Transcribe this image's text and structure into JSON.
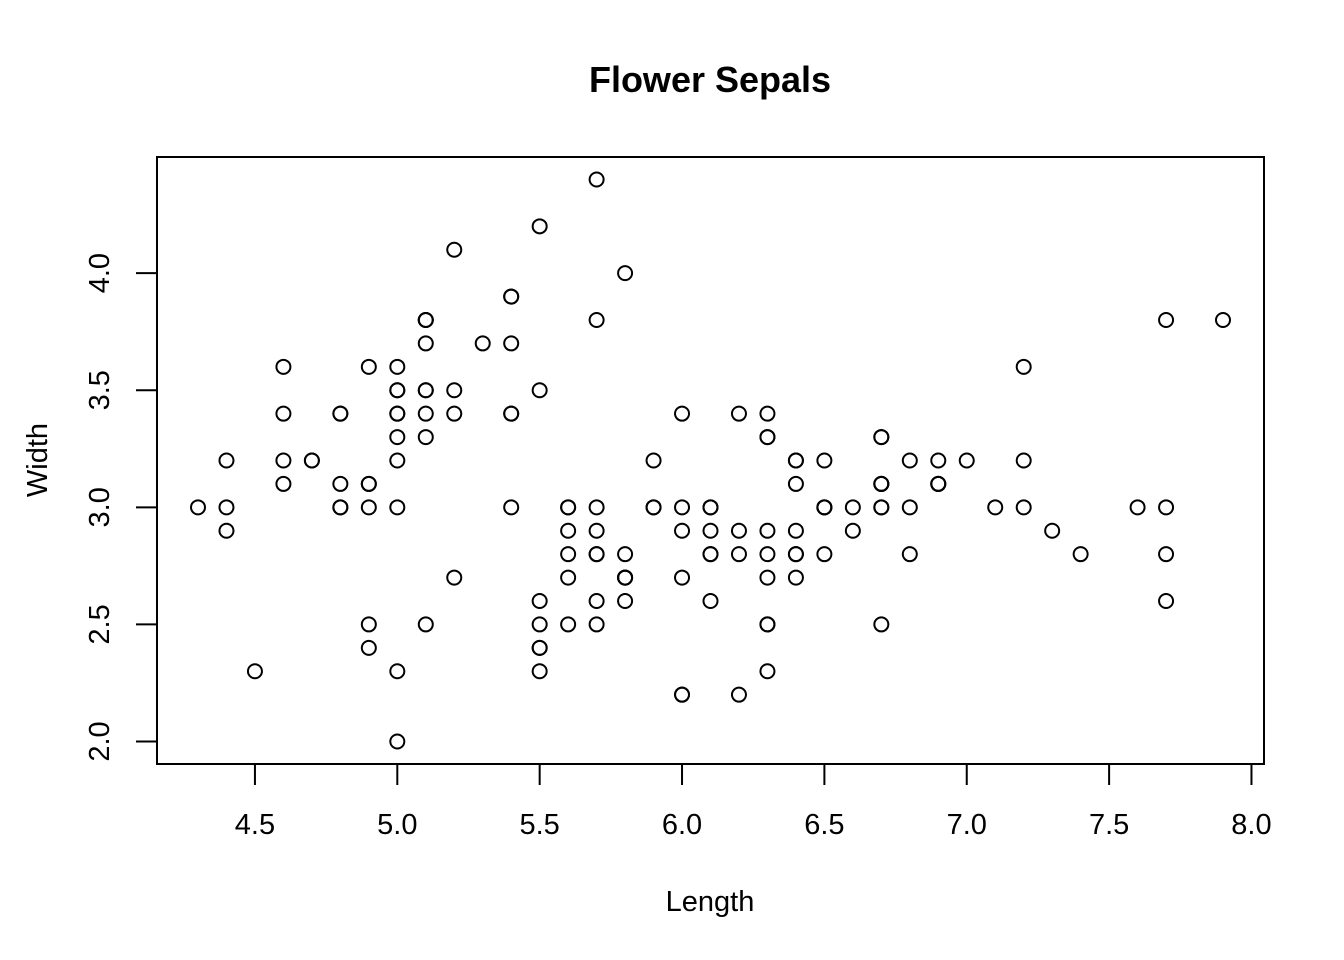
{
  "chart_data": {
    "type": "scatter",
    "title": "Flower Sepals",
    "xlabel": "Length",
    "ylabel": "Width",
    "xlim": [
      4.156,
      8.044
    ],
    "ylim": [
      1.904,
      4.496
    ],
    "xticks": [
      "4.5",
      "5.0",
      "5.5",
      "6.0",
      "6.5",
      "7.0",
      "7.5",
      "8.0"
    ],
    "yticks": [
      "2.0",
      "2.5",
      "3.0",
      "3.5",
      "4.0"
    ],
    "grid": false,
    "series": [
      {
        "points": [
          [
            5.1,
            3.5
          ],
          [
            4.9,
            3.0
          ],
          [
            4.7,
            3.2
          ],
          [
            4.6,
            3.1
          ],
          [
            5.0,
            3.6
          ],
          [
            5.4,
            3.9
          ],
          [
            4.6,
            3.4
          ],
          [
            5.0,
            3.4
          ],
          [
            4.4,
            2.9
          ],
          [
            4.9,
            3.1
          ],
          [
            5.4,
            3.7
          ],
          [
            4.8,
            3.4
          ],
          [
            4.8,
            3.0
          ],
          [
            4.3,
            3.0
          ],
          [
            5.8,
            4.0
          ],
          [
            5.7,
            4.4
          ],
          [
            5.4,
            3.9
          ],
          [
            5.1,
            3.5
          ],
          [
            5.7,
            3.8
          ],
          [
            5.1,
            3.8
          ],
          [
            5.4,
            3.4
          ],
          [
            5.1,
            3.7
          ],
          [
            4.6,
            3.6
          ],
          [
            5.1,
            3.3
          ],
          [
            4.8,
            3.4
          ],
          [
            5.0,
            3.0
          ],
          [
            5.0,
            3.4
          ],
          [
            5.2,
            3.5
          ],
          [
            5.2,
            3.4
          ],
          [
            4.7,
            3.2
          ],
          [
            4.8,
            3.1
          ],
          [
            5.4,
            3.4
          ],
          [
            5.2,
            4.1
          ],
          [
            5.5,
            4.2
          ],
          [
            4.9,
            3.1
          ],
          [
            5.0,
            3.2
          ],
          [
            5.5,
            3.5
          ],
          [
            4.9,
            3.6
          ],
          [
            4.4,
            3.0
          ],
          [
            5.1,
            3.4
          ],
          [
            5.0,
            3.5
          ],
          [
            4.5,
            2.3
          ],
          [
            4.4,
            3.2
          ],
          [
            5.0,
            3.5
          ],
          [
            5.1,
            3.8
          ],
          [
            4.8,
            3.0
          ],
          [
            5.1,
            3.8
          ],
          [
            4.6,
            3.2
          ],
          [
            5.3,
            3.7
          ],
          [
            5.0,
            3.3
          ],
          [
            7.0,
            3.2
          ],
          [
            6.4,
            3.2
          ],
          [
            6.9,
            3.1
          ],
          [
            5.5,
            2.3
          ],
          [
            6.5,
            2.8
          ],
          [
            5.7,
            2.8
          ],
          [
            6.3,
            3.3
          ],
          [
            4.9,
            2.4
          ],
          [
            6.6,
            2.9
          ],
          [
            5.2,
            2.7
          ],
          [
            5.0,
            2.0
          ],
          [
            5.9,
            3.0
          ],
          [
            6.0,
            2.2
          ],
          [
            6.1,
            2.9
          ],
          [
            5.6,
            2.9
          ],
          [
            6.7,
            3.1
          ],
          [
            5.6,
            3.0
          ],
          [
            5.8,
            2.7
          ],
          [
            6.2,
            2.2
          ],
          [
            5.6,
            2.5
          ],
          [
            5.9,
            3.2
          ],
          [
            6.1,
            2.8
          ],
          [
            6.3,
            2.5
          ],
          [
            6.1,
            2.8
          ],
          [
            6.4,
            2.9
          ],
          [
            6.6,
            3.0
          ],
          [
            6.8,
            2.8
          ],
          [
            6.7,
            3.0
          ],
          [
            6.0,
            2.9
          ],
          [
            5.7,
            2.6
          ],
          [
            5.5,
            2.4
          ],
          [
            5.5,
            2.4
          ],
          [
            5.8,
            2.7
          ],
          [
            6.0,
            2.7
          ],
          [
            5.4,
            3.0
          ],
          [
            6.0,
            3.4
          ],
          [
            6.7,
            3.1
          ],
          [
            6.3,
            2.3
          ],
          [
            5.6,
            3.0
          ],
          [
            5.5,
            2.5
          ],
          [
            5.5,
            2.6
          ],
          [
            6.1,
            3.0
          ],
          [
            5.8,
            2.6
          ],
          [
            5.0,
            2.3
          ],
          [
            5.6,
            2.7
          ],
          [
            5.7,
            3.0
          ],
          [
            5.7,
            2.9
          ],
          [
            6.2,
            2.9
          ],
          [
            5.1,
            2.5
          ],
          [
            5.7,
            2.8
          ],
          [
            6.3,
            3.3
          ],
          [
            5.8,
            2.7
          ],
          [
            7.1,
            3.0
          ],
          [
            6.3,
            2.9
          ],
          [
            6.5,
            3.0
          ],
          [
            7.6,
            3.0
          ],
          [
            4.9,
            2.5
          ],
          [
            7.3,
            2.9
          ],
          [
            6.7,
            2.5
          ],
          [
            7.2,
            3.6
          ],
          [
            6.5,
            3.2
          ],
          [
            6.4,
            2.7
          ],
          [
            6.8,
            3.0
          ],
          [
            5.7,
            2.5
          ],
          [
            5.8,
            2.8
          ],
          [
            6.4,
            3.2
          ],
          [
            6.5,
            3.0
          ],
          [
            7.7,
            3.8
          ],
          [
            7.7,
            2.6
          ],
          [
            6.0,
            2.2
          ],
          [
            6.9,
            3.2
          ],
          [
            5.6,
            2.8
          ],
          [
            7.7,
            2.8
          ],
          [
            6.3,
            2.7
          ],
          [
            6.7,
            3.3
          ],
          [
            7.2,
            3.2
          ],
          [
            6.2,
            2.8
          ],
          [
            6.1,
            3.0
          ],
          [
            6.4,
            2.8
          ],
          [
            7.2,
            3.0
          ],
          [
            7.4,
            2.8
          ],
          [
            7.9,
            3.8
          ],
          [
            6.4,
            2.8
          ],
          [
            6.3,
            2.8
          ],
          [
            6.1,
            2.6
          ],
          [
            7.7,
            3.0
          ],
          [
            6.3,
            3.4
          ],
          [
            6.4,
            3.1
          ],
          [
            6.0,
            3.0
          ],
          [
            6.9,
            3.1
          ],
          [
            6.7,
            3.1
          ],
          [
            6.9,
            3.1
          ],
          [
            5.8,
            2.7
          ],
          [
            6.8,
            3.2
          ],
          [
            6.7,
            3.3
          ],
          [
            6.7,
            3.0
          ],
          [
            6.3,
            2.5
          ],
          [
            6.5,
            3.0
          ],
          [
            6.2,
            3.4
          ],
          [
            5.9,
            3.0
          ]
        ]
      }
    ]
  }
}
